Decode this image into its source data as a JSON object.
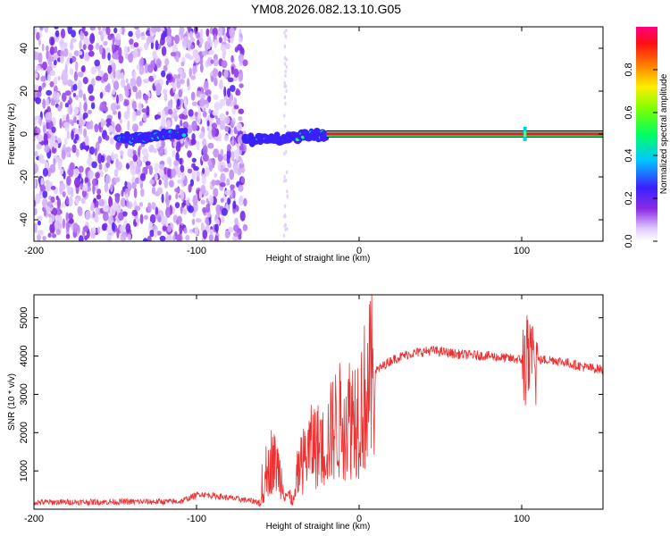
{
  "title": "YM08.2026.082.13.10.G05",
  "chart_data": [
    {
      "type": "heatmap",
      "name": "spectrogram",
      "xlabel": "Height of straight line (km)",
      "ylabel": "Frequency (Hz)",
      "xlim": [
        -200,
        150
      ],
      "ylim": [
        -50,
        50
      ],
      "xticks": [
        -200,
        -100,
        0,
        100
      ],
      "yticks": [
        -40,
        -20,
        0,
        20,
        40
      ],
      "colorbar": {
        "label": "Normalized spectral amplitude",
        "range": [
          0,
          1
        ],
        "ticks": [
          0.0,
          0.2,
          0.4,
          0.6,
          0.8
        ]
      },
      "features": [
        {
          "kind": "noise",
          "x_range": [
            -200,
            -70
          ],
          "freq_range": [
            -50,
            50
          ],
          "amplitude": 0.2
        },
        {
          "kind": "ridge",
          "x_range": [
            -148,
            -107
          ],
          "freq_start": -3,
          "freq_end": 1,
          "amplitude": 0.35
        },
        {
          "kind": "ridge",
          "x_range": [
            -70,
            -20
          ],
          "freq_start": -3,
          "freq_end": 0,
          "amplitude": 0.4
        },
        {
          "kind": "carrier",
          "x_range": [
            -20,
            150
          ],
          "freq": 0,
          "amplitude": 0.95
        }
      ]
    },
    {
      "type": "line",
      "name": "snr",
      "xlabel": "Height of straight line (km)",
      "ylabel": "SNR (10 * v/v)",
      "xlim": [
        -200,
        150
      ],
      "ylim": [
        0,
        5600
      ],
      "xticks": [
        -200,
        -100,
        0,
        100
      ],
      "yticks": [
        1000,
        2000,
        3000,
        4000,
        5000
      ],
      "color": "#ee3030",
      "anchors": {
        "x": [
          -200,
          -110,
          -98,
          -60,
          -54,
          -50,
          -45,
          -40,
          -38,
          -33,
          -28,
          -22,
          -15,
          -8,
          0,
          10,
          20,
          30,
          45,
          60,
          80,
          100,
          106,
          110,
          120,
          140,
          150
        ],
        "y": [
          180,
          200,
          400,
          180,
          1300,
          1100,
          400,
          200,
          900,
          1400,
          1700,
          1600,
          2200,
          2400,
          2600,
          3600,
          3900,
          4050,
          4150,
          4050,
          4000,
          3900,
          3800,
          3900,
          3900,
          3700,
          3650
        ]
      }
    }
  ]
}
